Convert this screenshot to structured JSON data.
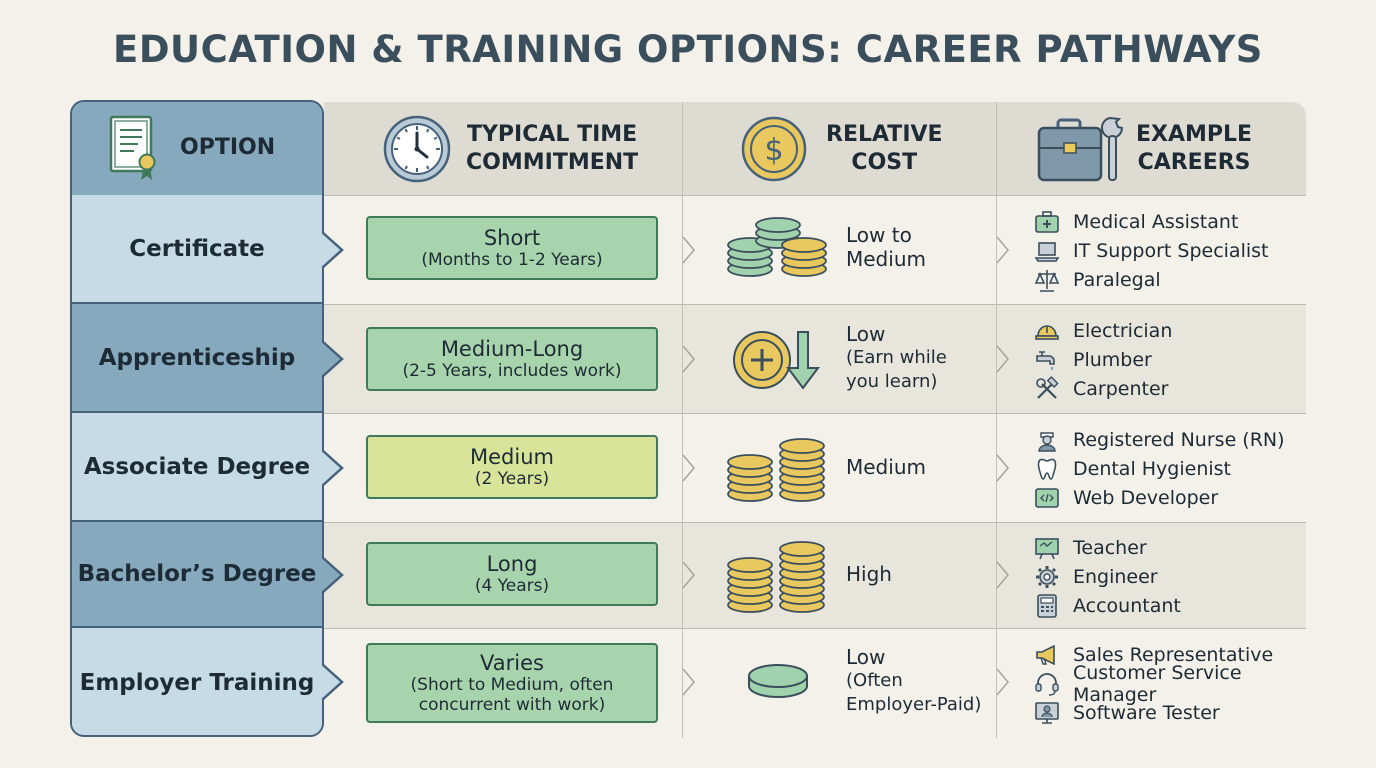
{
  "title": "EDUCATION & TRAINING OPTIONS: CAREER PATHWAYS",
  "headers": {
    "option": "OPTION",
    "time_line1": "TYPICAL TIME",
    "time_line2": "COMMITMENT",
    "cost_line1": "RELATIVE",
    "cost_line2": "COST",
    "careers_line1": "EXAMPLE",
    "careers_line2": "CAREERS"
  },
  "header_icons": [
    "certificate-icon",
    "clock-icon",
    "dollar-coin-icon",
    "briefcase-wrench-icon"
  ],
  "colors": {
    "option_dark": "#86a9be",
    "option_light": "#c6dbe6",
    "pill_green": "#a8d4ad",
    "pill_yellow": "#d8e49a",
    "coin_gold": "#e9c95f",
    "coin_green": "#9fd2ad"
  },
  "rows": [
    {
      "option": "Certificate",
      "time_main": "Short",
      "time_sub": "(Months to 1-2 Years)",
      "cost": [
        "Low to",
        "Medium"
      ],
      "cost_icon": "mixed-coin-stacks-icon",
      "careers": [
        {
          "label": "Medical Assistant",
          "icon": "medical-kit-icon"
        },
        {
          "label": "IT Support Specialist",
          "icon": "laptop-icon"
        },
        {
          "label": "Paralegal",
          "icon": "scales-icon"
        }
      ]
    },
    {
      "option": "Apprenticeship",
      "time_main": "Medium-Long",
      "time_sub": "(2-5 Years, includes work)",
      "cost": [
        "Low",
        "(Earn while",
        "you learn)"
      ],
      "cost_icon": "plus-coin-down-arrow-icon",
      "careers": [
        {
          "label": "Electrician",
          "icon": "hard-hat-icon"
        },
        {
          "label": "Plumber",
          "icon": "faucet-icon"
        },
        {
          "label": "Carpenter",
          "icon": "hammer-wrench-icon"
        }
      ]
    },
    {
      "option": "Associate Degree",
      "time_main": "Medium",
      "time_sub": "(2 Years)",
      "cost": [
        "Medium"
      ],
      "cost_icon": "gold-coin-stacks-icon",
      "careers": [
        {
          "label": "Registered Nurse (RN)",
          "icon": "nurse-icon"
        },
        {
          "label": "Dental Hygienist",
          "icon": "tooth-icon"
        },
        {
          "label": "Web Developer",
          "icon": "code-window-icon"
        }
      ]
    },
    {
      "option": "Bachelor’s Degree",
      "time_main": "Long",
      "time_sub": "(4 Years)",
      "cost": [
        "High"
      ],
      "cost_icon": "tall-gold-coin-stacks-icon",
      "careers": [
        {
          "label": "Teacher",
          "icon": "chalkboard-icon"
        },
        {
          "label": "Engineer",
          "icon": "gear-icon"
        },
        {
          "label": "Accountant",
          "icon": "calculator-icon"
        }
      ]
    },
    {
      "option": "Employer Training",
      "time_main": "Varies",
      "time_sub": "(Short to Medium, often concurrent with work)",
      "cost": [
        "Low",
        "(Often",
        "Employer-Paid)"
      ],
      "cost_icon": "single-green-coin-icon",
      "careers": [
        {
          "label": "Sales Representative",
          "icon": "megaphone-icon"
        },
        {
          "label": "Customer Service Manager",
          "icon": "headset-icon"
        },
        {
          "label": "Software Tester",
          "icon": "monitor-user-icon"
        }
      ]
    }
  ]
}
